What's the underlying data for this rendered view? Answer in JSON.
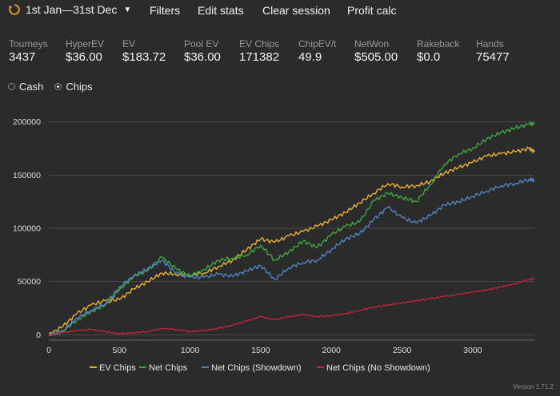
{
  "toolbar": {
    "date_range": "1st Jan—31st Dec",
    "filters": "Filters",
    "edit_stats": "Edit stats",
    "clear_session": "Clear session",
    "profit_calc": "Profit calc"
  },
  "stats": [
    {
      "label": "Tourneys",
      "value": "3437"
    },
    {
      "label": "HyperEV",
      "value": "$36.00"
    },
    {
      "label": "EV",
      "value": "$183.72"
    },
    {
      "label": "Pool EV",
      "value": "$36.00"
    },
    {
      "label": "EV Chips",
      "value": "171382"
    },
    {
      "label": "ChipEV/t",
      "value": "49.9"
    },
    {
      "label": "NetWon",
      "value": "$505.00"
    },
    {
      "label": "Rakeback",
      "value": "$0.0"
    },
    {
      "label": "Hands",
      "value": "75477"
    }
  ],
  "mode": {
    "options": [
      "Cash",
      "Chips"
    ],
    "selected": "Chips"
  },
  "version": "Version 1.71.2",
  "chart_data": {
    "type": "line",
    "grid": true,
    "legend_position": "bottom",
    "xlim": [
      0,
      3437
    ],
    "ylim": [
      -5000,
      205000
    ],
    "x_ticks": [
      0,
      500,
      1000,
      1500,
      2000,
      2500,
      3000
    ],
    "y_ticks": [
      0,
      50000,
      100000,
      150000,
      200000
    ],
    "x": [
      0,
      100,
      200,
      300,
      400,
      500,
      600,
      700,
      800,
      900,
      1000,
      1100,
      1200,
      1300,
      1400,
      1500,
      1600,
      1700,
      1800,
      1900,
      2000,
      2100,
      2200,
      2300,
      2400,
      2500,
      2600,
      2700,
      2800,
      2900,
      3000,
      3100,
      3200,
      3300,
      3400,
      3437
    ],
    "series": [
      {
        "name": "EV Chips",
        "color": "#e8b032",
        "values": [
          0,
          8000,
          20000,
          28000,
          32000,
          33000,
          43000,
          50000,
          58000,
          57000,
          56000,
          58000,
          64000,
          70000,
          80000,
          90000,
          87000,
          93000,
          97000,
          102000,
          108000,
          115000,
          124000,
          133000,
          142000,
          139000,
          140000,
          144000,
          152000,
          157000,
          162000,
          168000,
          170000,
          172000,
          175000,
          172000
        ]
      },
      {
        "name": "Net Chips",
        "color": "#3ea83e",
        "values": [
          0,
          4000,
          14000,
          22000,
          28000,
          42000,
          55000,
          60000,
          73000,
          62000,
          55000,
          61000,
          70000,
          72000,
          75000,
          84000,
          70000,
          78000,
          88000,
          82000,
          94000,
          102000,
          106000,
          126000,
          133000,
          129000,
          125000,
          141000,
          160000,
          170000,
          175000,
          184000,
          190000,
          194000,
          198000,
          198000
        ]
      },
      {
        "name": "Net Chips (Showdown)",
        "color": "#4f84bf",
        "values": [
          0,
          3000,
          16000,
          23000,
          29000,
          45000,
          55000,
          62000,
          70000,
          58000,
          54000,
          54000,
          57000,
          55000,
          60000,
          65000,
          52000,
          63000,
          68000,
          70000,
          80000,
          90000,
          95000,
          108000,
          120000,
          110000,
          105000,
          112000,
          122000,
          125000,
          130000,
          135000,
          140000,
          142000,
          146000,
          145000
        ]
      },
      {
        "name": "Net Chips (No Showdown)",
        "color": "#c0233f",
        "values": [
          0,
          2000,
          4000,
          5000,
          3000,
          1000,
          2000,
          3000,
          6000,
          5000,
          3000,
          4000,
          6000,
          9000,
          13000,
          17000,
          14000,
          17000,
          19000,
          17000,
          18000,
          20000,
          23000,
          26000,
          28000,
          30000,
          32000,
          34000,
          36000,
          38000,
          40000,
          42000,
          45000,
          48000,
          52000,
          53000
        ]
      }
    ]
  }
}
